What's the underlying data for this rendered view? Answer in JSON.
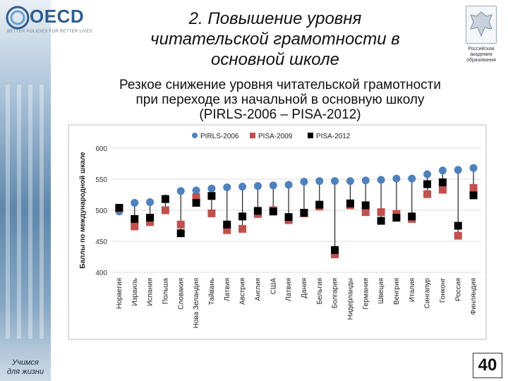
{
  "logo": {
    "name": "OECD",
    "tagline": "BETTER POLICIES FOR BETTER LIVES"
  },
  "emblem": {
    "caption": [
      "Российская",
      "академия",
      "образования"
    ]
  },
  "slide": {
    "title_lines": [
      "2. Повышение уровня",
      "читательской грамотности в",
      "основной школе"
    ],
    "subtitle_lines": [
      "Резкое снижение уровня читательской грамотности",
      "при переходе из начальной в основную школу",
      "(PIRLS-2006 – PISA-2012)"
    ],
    "sidebar_caption": [
      "Учимся",
      "для жизни"
    ],
    "page_number": "40"
  },
  "chart_data": {
    "type": "scatter",
    "title": "",
    "xlabel": "",
    "ylabel": "Баллы по международной шкале",
    "ylim": [
      400,
      600
    ],
    "yticks": [
      400,
      450,
      500,
      550,
      600
    ],
    "legend_position": "top",
    "colors": {
      "PIRLS-2006": "#4f81bd",
      "PISA-2009": "#c0504d",
      "PISA-2012": "#000000"
    },
    "categories": [
      "Норвегия",
      "Израиль",
      "Испания",
      "Польша",
      "Словакия",
      "Нова Зеландия",
      "Тайвань",
      "Латвия",
      "Австрия",
      "Англия",
      "США",
      "Латвия",
      "Дания",
      "Бельгия",
      "Болгария",
      "Нидерланды",
      "Германия",
      "Швеция",
      "Венгрия",
      "Италия",
      "Сингапур",
      "Гонконг",
      "Россия",
      "Финляндия"
    ],
    "series": [
      {
        "name": "PIRLS-2006",
        "marker": "circle",
        "values": [
          498,
          512,
          513,
          519,
          531,
          532,
          535,
          537,
          538,
          539,
          540,
          541,
          546,
          547,
          547,
          547,
          548,
          549,
          551,
          551,
          558,
          564,
          565,
          568
        ]
      },
      {
        "name": "PISA-2009",
        "marker": "square",
        "values": [
          503,
          474,
          481,
          500,
          477,
          521,
          495,
          468,
          470,
          494,
          500,
          484,
          495,
          506,
          429,
          508,
          497,
          497,
          494,
          486,
          526,
          533,
          459,
          536
        ]
      },
      {
        "name": "PISA-2012",
        "marker": "square",
        "values": [
          504,
          486,
          488,
          518,
          463,
          512,
          523,
          477,
          490,
          499,
          498,
          489,
          496,
          509,
          436,
          511,
          508,
          483,
          488,
          490,
          542,
          545,
          475,
          524
        ]
      }
    ]
  }
}
